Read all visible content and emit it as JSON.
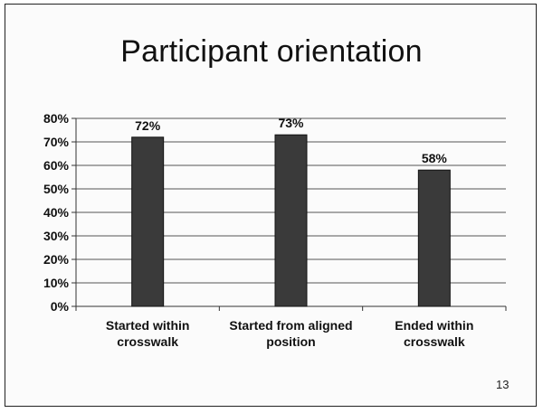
{
  "slide": {
    "title": "Participant orientation",
    "page_number": "13"
  },
  "chart_data": {
    "type": "bar",
    "categories": [
      [
        "Started within",
        "crosswalk"
      ],
      [
        "Started from aligned",
        "position"
      ],
      [
        "Ended within",
        "crosswalk"
      ]
    ],
    "values": [
      72,
      73,
      58
    ],
    "data_labels": [
      "72%",
      "73%",
      "58%"
    ],
    "ylim": [
      0,
      80
    ],
    "yticks": [
      0,
      10,
      20,
      30,
      40,
      50,
      60,
      70,
      80
    ],
    "ytick_labels": [
      "0%",
      "10%",
      "20%",
      "30%",
      "40%",
      "50%",
      "60%",
      "70%",
      "80%"
    ],
    "grid": true,
    "legend": "none",
    "colors": {
      "bar": "#3a3a3a",
      "grid": "#555555",
      "axis": "#333333"
    }
  }
}
